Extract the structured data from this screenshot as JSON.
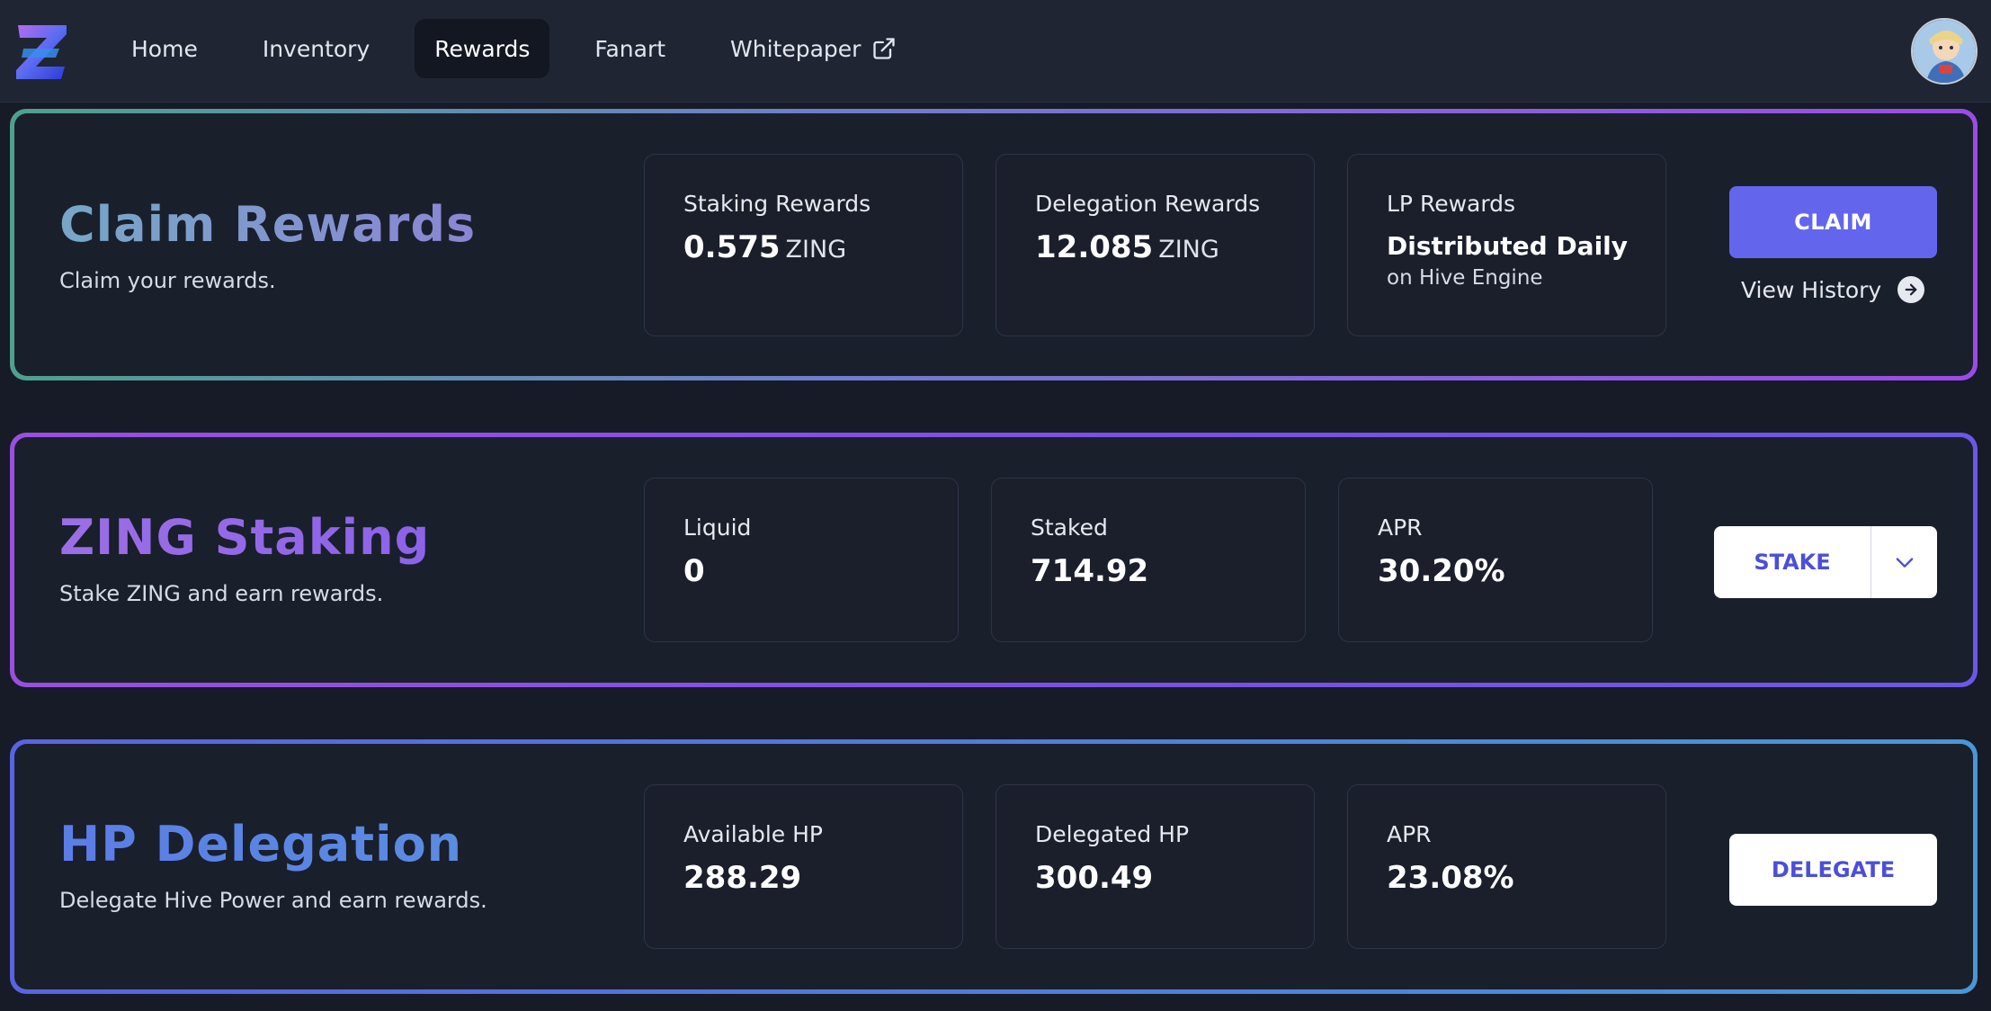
{
  "nav": {
    "items": [
      {
        "label": "Home"
      },
      {
        "label": "Inventory"
      },
      {
        "label": "Rewards",
        "active": true
      },
      {
        "label": "Fanart"
      },
      {
        "label": "Whitepaper",
        "external": true
      }
    ]
  },
  "claim": {
    "title": "Claim Rewards",
    "subtitle": "Claim your rewards.",
    "staking": {
      "label": "Staking Rewards",
      "value": "0.575",
      "unit": "ZING"
    },
    "delegation": {
      "label": "Delegation Rewards",
      "value": "12.085",
      "unit": "ZING"
    },
    "lp": {
      "label": "LP Rewards",
      "value": "Distributed Daily",
      "note": "on Hive Engine"
    },
    "button": "CLAIM",
    "history": "View History"
  },
  "staking": {
    "title": "ZING Staking",
    "subtitle": "Stake ZING and earn rewards.",
    "liquid": {
      "label": "Liquid",
      "value": "0"
    },
    "staked": {
      "label": "Staked",
      "value": "714.92"
    },
    "apr": {
      "label": "APR",
      "value": "30.20%"
    },
    "button": "STAKE"
  },
  "delegation": {
    "title": "HP Delegation",
    "subtitle": "Delegate Hive Power and earn rewards.",
    "available": {
      "label": "Available HP",
      "value": "288.29"
    },
    "delegated": {
      "label": "Delegated HP",
      "value": "300.49"
    },
    "apr": {
      "label": "APR",
      "value": "23.08%"
    },
    "button": "DELEGATE"
  },
  "icons": {
    "logo": "zing-logo-icon",
    "external": "external-link-icon",
    "arrow": "arrow-right-circle-icon",
    "chevron": "chevron-down-icon"
  },
  "colors": {
    "accent": "#6366ec",
    "background": "#161b27",
    "header": "#1f2533"
  }
}
